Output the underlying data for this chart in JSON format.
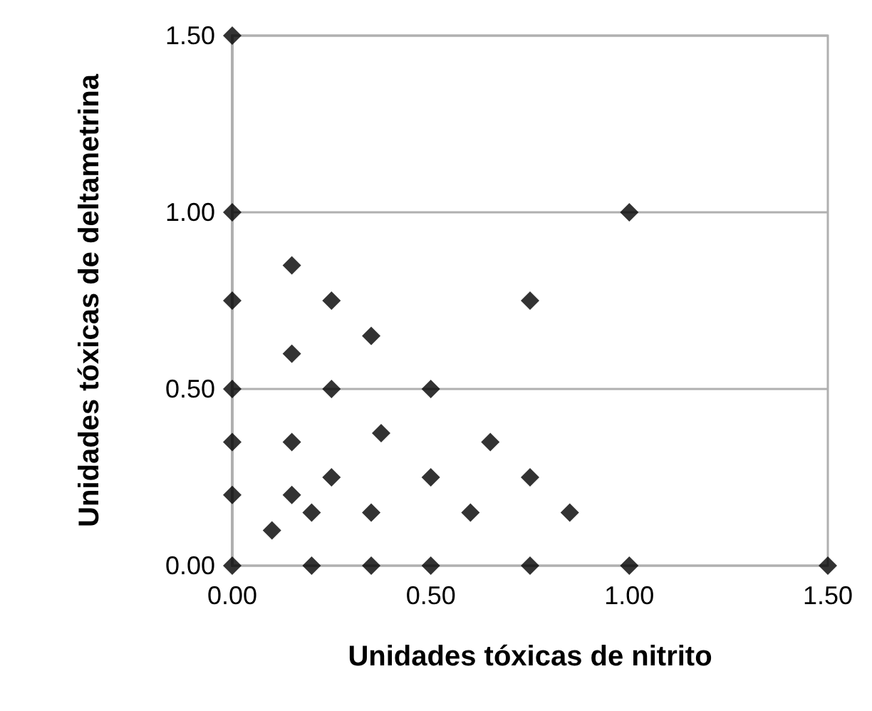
{
  "chart_data": {
    "type": "scatter",
    "xlabel": "Unidades tóxicas de nitrito",
    "ylabel": "Unidades tóxicas de deltametrina",
    "x": [
      0,
      0,
      1,
      0.15,
      0,
      0.25,
      0.75,
      0.35,
      0.15,
      0,
      0.25,
      0.5,
      0.375,
      0,
      0.15,
      0.65,
      0.25,
      0.5,
      0.75,
      0,
      0.15,
      0.2,
      0.35,
      0.6,
      0.85,
      0.1,
      0,
      0.2,
      0.35,
      0.5,
      0.75,
      1,
      1.5
    ],
    "values": [
      1.5,
      1,
      1,
      0.85,
      0.75,
      0.75,
      0.75,
      0.65,
      0.6,
      0.5,
      0.5,
      0.5,
      0.375,
      0.35,
      0.35,
      0.35,
      0.25,
      0.25,
      0.25,
      0.2,
      0.2,
      0.15,
      0.15,
      0.15,
      0.15,
      0.1,
      0,
      0,
      0,
      0,
      0,
      0,
      0
    ],
    "color": "#000000",
    "marker": "diamond",
    "grid": "y",
    "xlim": [
      0,
      1.5
    ],
    "xticks": [
      {
        "value": 0,
        "label": "0.00"
      },
      {
        "value": 0.5,
        "label": "0.50"
      },
      {
        "value": 1,
        "label": "1.00"
      },
      {
        "value": 1.5,
        "label": "1.50"
      }
    ],
    "ylim": [
      0,
      1.5
    ],
    "yticks": [
      {
        "value": 0,
        "label": "0.00"
      },
      {
        "value": 0.5,
        "label": "0.50"
      },
      {
        "value": 1,
        "label": "1.00"
      },
      {
        "value": 1.5,
        "label": "1.50"
      }
    ]
  }
}
